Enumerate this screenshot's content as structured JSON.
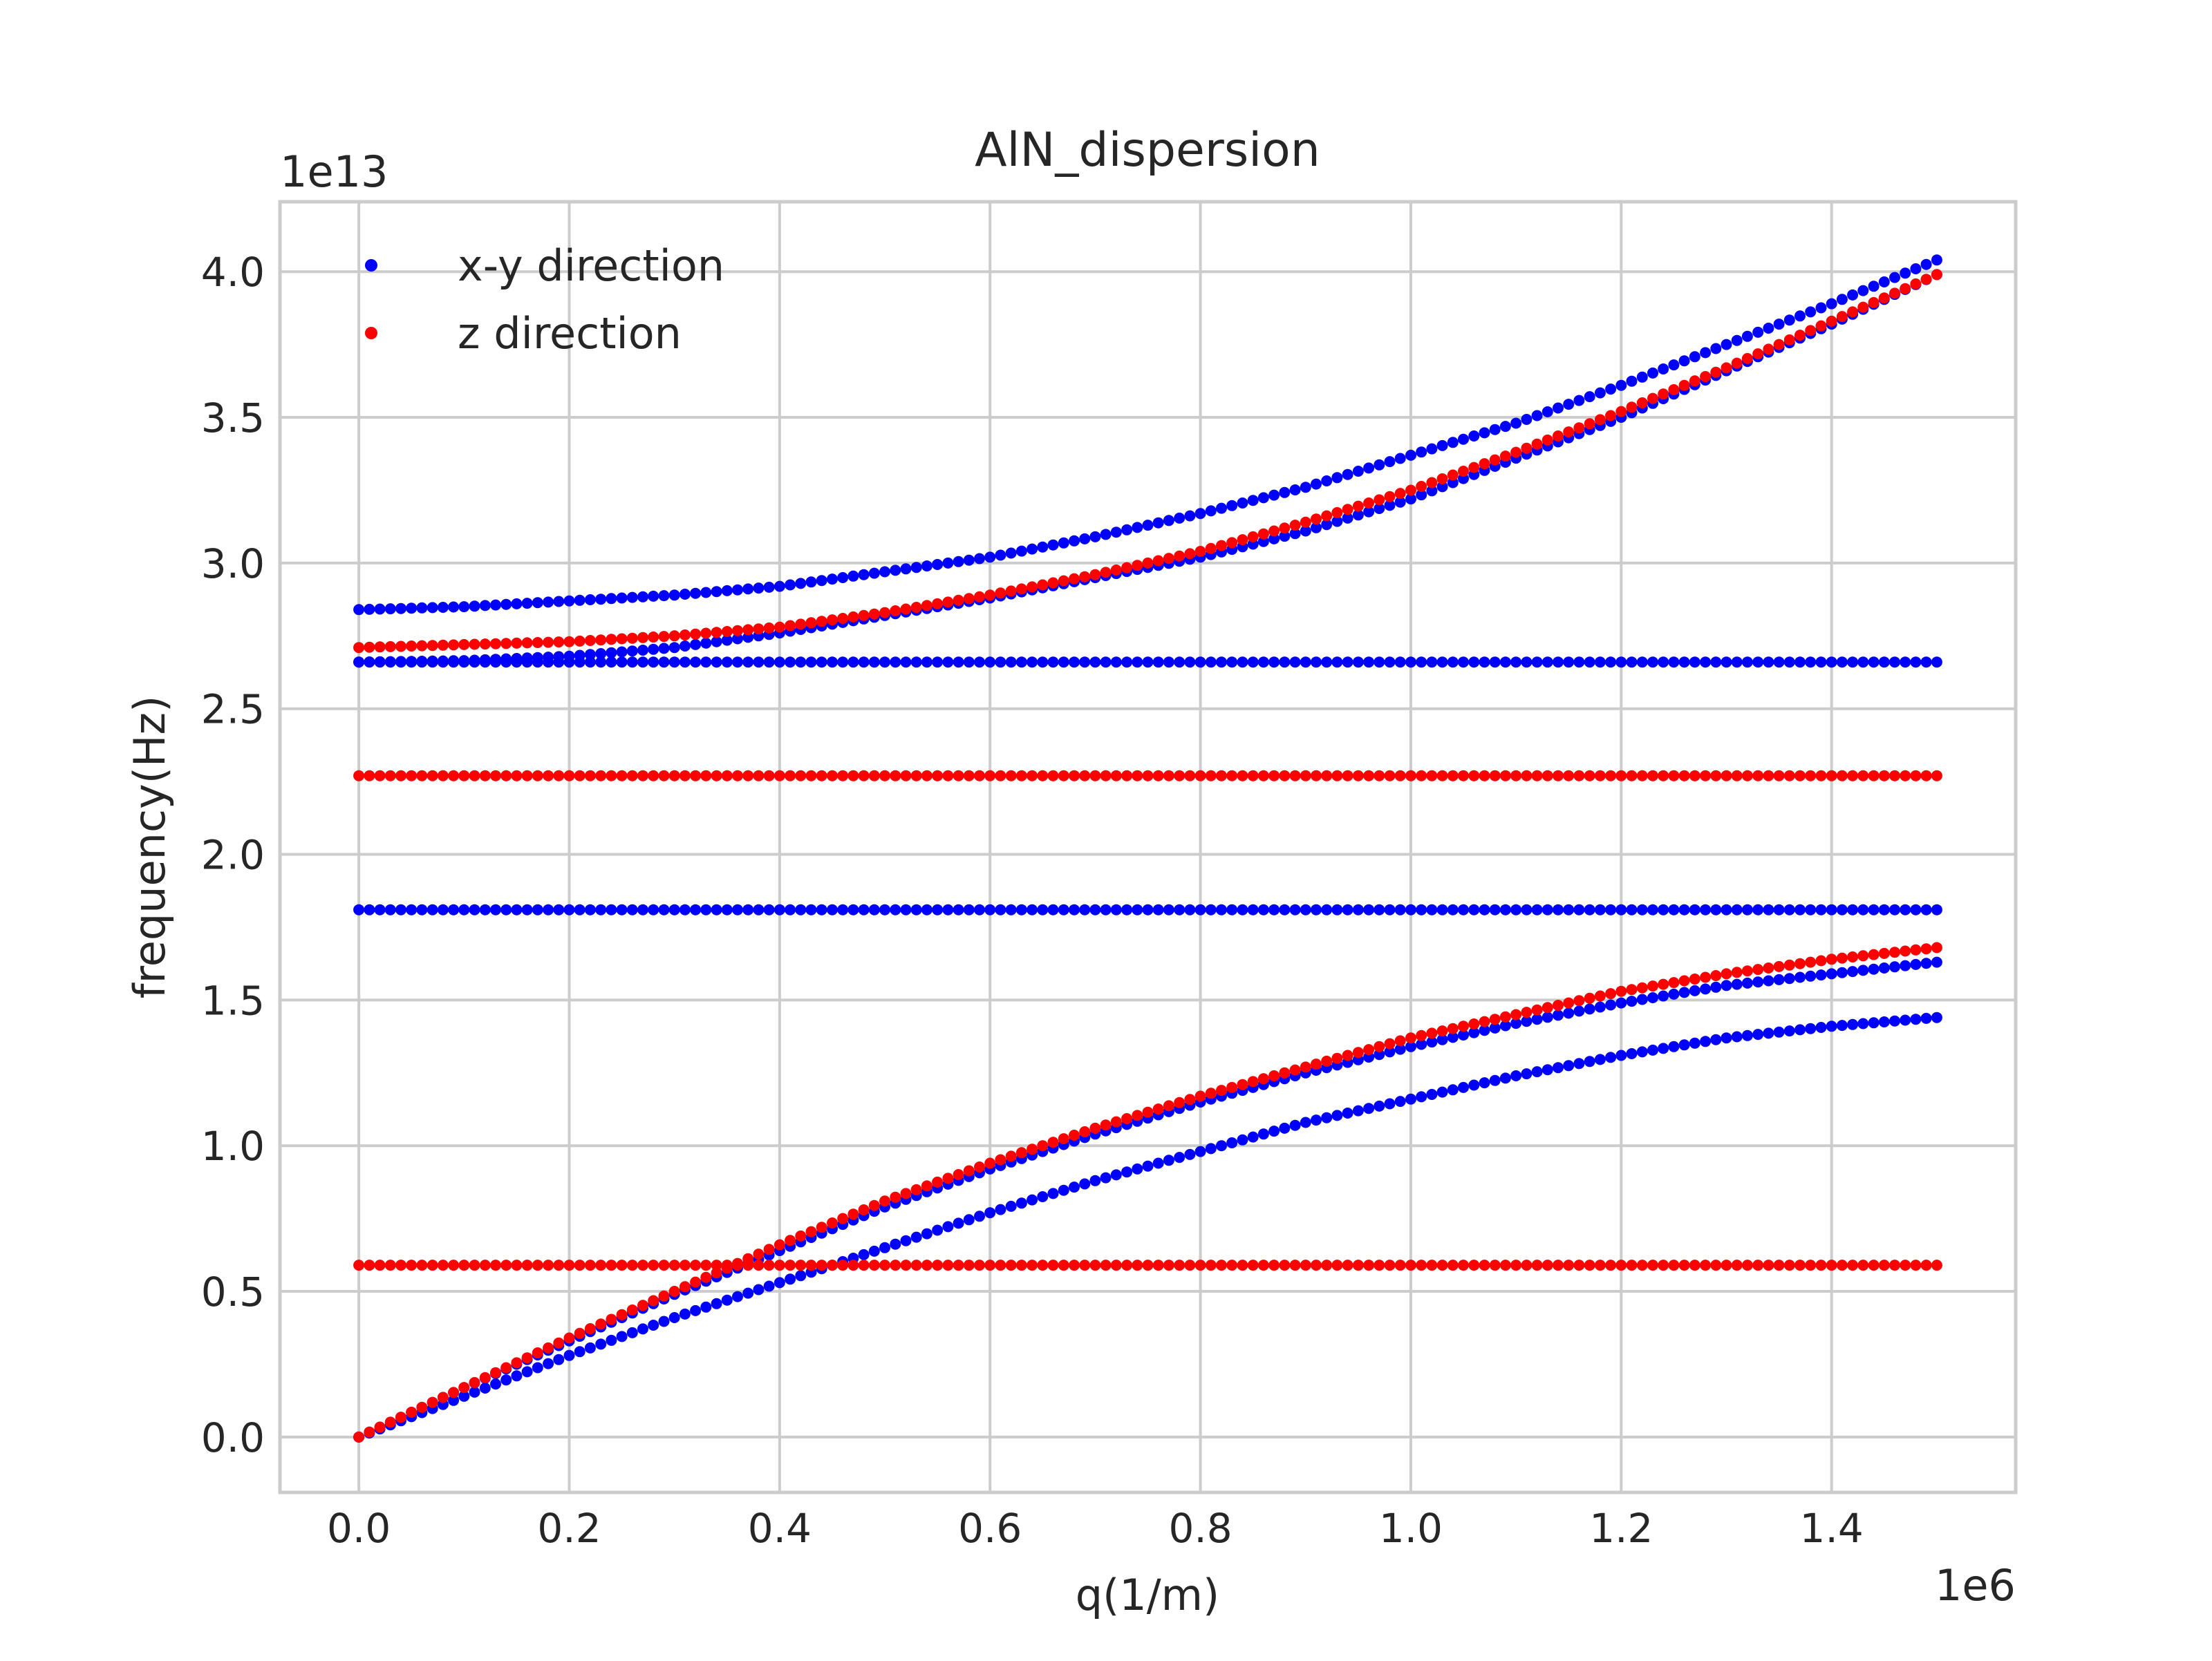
{
  "chart_data": {
    "type": "scatter",
    "title": "AlN_dispersion",
    "xlabel": "q(1/m)",
    "ylabel": "frequency(Hz)",
    "x_offset_label": "1e6",
    "y_offset_label": "1e13",
    "x_scale": 1000000,
    "y_scale": 10000000000000,
    "xlim": [
      -75000,
      1575000
    ],
    "ylim": [
      -1900000000000,
      42400000000000
    ],
    "x_ticks": [
      0,
      200000,
      400000,
      600000,
      800000,
      1000000,
      1200000,
      1400000
    ],
    "x_tick_labels": [
      "0.0",
      "0.2",
      "0.4",
      "0.6",
      "0.8",
      "1.0",
      "1.2",
      "1.4"
    ],
    "y_ticks": [
      0,
      5000000000000,
      10000000000000,
      15000000000000,
      20000000000000,
      25000000000000,
      30000000000000,
      35000000000000,
      40000000000000
    ],
    "y_tick_labels": [
      "0.0",
      "0.5",
      "1.0",
      "1.5",
      "2.0",
      "2.5",
      "3.0",
      "3.5",
      "4.0"
    ],
    "grid": true,
    "legend_position": "top-left",
    "colors": {
      "x-y direction": "#0000ff",
      "z direction": "#ff0000",
      "grid": "#cccccc",
      "axes_edge": "#cccccc"
    },
    "q_range": [
      0,
      1500000
    ],
    "points_per_branch": 151,
    "series": [
      {
        "name": "x-y direction",
        "color": "#0000ff",
        "branches": [
          {
            "q": [
              0,
              100000,
              200000,
              300000,
              400000,
              500000,
              600000,
              700000,
              800000,
              900000,
              1000000,
              1100000,
              1200000,
              1300000,
              1400000,
              1500000
            ],
            "f": [
              0,
              1400000000000,
              2800000000000,
              4100000000000,
              5300000000000,
              6500000000000,
              7700000000000,
              8800000000000,
              9800000000000,
              10800000000000,
              11600000000000,
              12400000000000,
              13100000000000,
              13700000000000,
              14100000000000,
              14400000000000
            ]
          },
          {
            "q": [
              0,
              100000,
              200000,
              300000,
              400000,
              500000,
              600000,
              700000,
              800000,
              900000,
              1000000,
              1100000,
              1200000,
              1300000,
              1400000,
              1500000
            ],
            "f": [
              0,
              1700000000000,
              3300000000000,
              4900000000000,
              6400000000000,
              7900000000000,
              9200000000000,
              10400000000000,
              11500000000000,
              12500000000000,
              13400000000000,
              14200000000000,
              14900000000000,
              15500000000000,
              15900000000000,
              16300000000000
            ]
          },
          {
            "q": [
              0,
              1500000
            ],
            "f": [
              18100000000000,
              18100000000000
            ]
          },
          {
            "q": [
              0,
              1500000
            ],
            "f": [
              26600000000000,
              26600000000000
            ]
          },
          {
            "q": [
              0,
              100000,
              200000,
              300000,
              400000,
              500000,
              600000,
              700000,
              800000,
              900000,
              1000000,
              1100000,
              1200000,
              1300000,
              1400000,
              1500000
            ],
            "f": [
              26600000000000,
              26650000000000,
              26800000000000,
              27100000000000,
              27600000000000,
              28200000000000,
              28800000000000,
              29500000000000,
              30200000000000,
              31100000000000,
              32200000000000,
              33600000000000,
              35000000000000,
              36600000000000,
              38200000000000,
              39900000000000
            ]
          },
          {
            "q": [
              0,
              100000,
              200000,
              300000,
              400000,
              500000,
              600000,
              700000,
              800000,
              900000,
              1000000,
              1100000,
              1200000,
              1300000,
              1400000,
              1500000
            ],
            "f": [
              28400000000000,
              28500000000000,
              28700000000000,
              28900000000000,
              29200000000000,
              29700000000000,
              30200000000000,
              30900000000000,
              31700000000000,
              32600000000000,
              33700000000000,
              34800000000000,
              36100000000000,
              37500000000000,
              38900000000000,
              40400000000000
            ]
          }
        ]
      },
      {
        "name": "z direction",
        "color": "#ff0000",
        "branches": [
          {
            "q": [
              0,
              100000,
              200000,
              300000,
              400000,
              500000,
              600000,
              700000,
              800000,
              900000,
              1000000,
              1100000,
              1200000,
              1300000,
              1400000,
              1500000
            ],
            "f": [
              0,
              1700000000000,
              3400000000000,
              5000000000000,
              6600000000000,
              8100000000000,
              9400000000000,
              10600000000000,
              11700000000000,
              12700000000000,
              13700000000000,
              14500000000000,
              15300000000000,
              15900000000000,
              16400000000000,
              16800000000000
            ]
          },
          {
            "q": [
              0,
              1500000
            ],
            "f": [
              5900000000000,
              5900000000000
            ]
          },
          {
            "q": [
              0,
              1500000
            ],
            "f": [
              22700000000000,
              22700000000000
            ]
          },
          {
            "q": [
              0,
              100000,
              200000,
              300000,
              400000,
              500000,
              600000,
              700000,
              800000,
              900000,
              1000000,
              1100000,
              1200000,
              1300000,
              1400000,
              1500000
            ],
            "f": [
              27100000000000,
              27200000000000,
              27300000000000,
              27500000000000,
              27800000000000,
              28300000000000,
              28900000000000,
              29600000000000,
              30400000000000,
              31400000000000,
              32500000000000,
              33800000000000,
              35200000000000,
              36700000000000,
              38300000000000,
              39900000000000
            ]
          }
        ]
      }
    ]
  }
}
